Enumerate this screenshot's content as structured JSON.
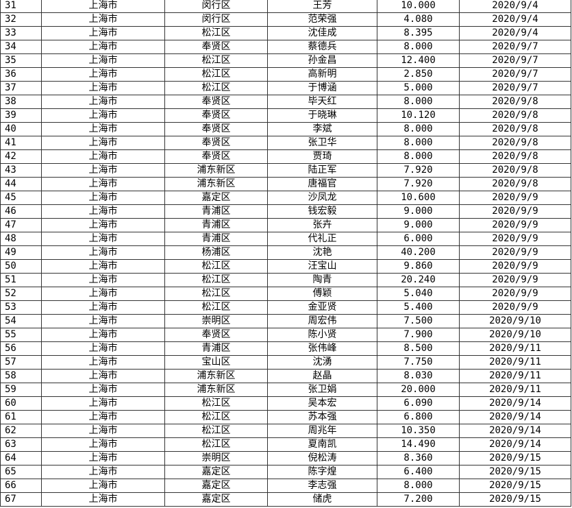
{
  "table": {
    "rows": [
      [
        "31",
        "上海市",
        "闵行区",
        "王芳",
        "10.000",
        "2020/9/4"
      ],
      [
        "32",
        "上海市",
        "闵行区",
        "范荣强",
        "4.080",
        "2020/9/4"
      ],
      [
        "33",
        "上海市",
        "松江区",
        "沈佳成",
        "8.395",
        "2020/9/4"
      ],
      [
        "34",
        "上海市",
        "奉贤区",
        "蔡德兵",
        "8.000",
        "2020/9/7"
      ],
      [
        "35",
        "上海市",
        "松江区",
        "孙金昌",
        "12.400",
        "2020/9/7"
      ],
      [
        "36",
        "上海市",
        "松江区",
        "高新明",
        "2.850",
        "2020/9/7"
      ],
      [
        "37",
        "上海市",
        "松江区",
        "于博涵",
        "5.000",
        "2020/9/7"
      ],
      [
        "38",
        "上海市",
        "奉贤区",
        "毕天红",
        "8.000",
        "2020/9/8"
      ],
      [
        "39",
        "上海市",
        "奉贤区",
        "于晓琳",
        "10.120",
        "2020/9/8"
      ],
      [
        "40",
        "上海市",
        "奉贤区",
        "李斌",
        "8.000",
        "2020/9/8"
      ],
      [
        "41",
        "上海市",
        "奉贤区",
        "张卫华",
        "8.000",
        "2020/9/8"
      ],
      [
        "42",
        "上海市",
        "奉贤区",
        "贾琦",
        "8.000",
        "2020/9/8"
      ],
      [
        "43",
        "上海市",
        "浦东新区",
        "陆正军",
        "7.920",
        "2020/9/8"
      ],
      [
        "44",
        "上海市",
        "浦东新区",
        "唐福官",
        "7.920",
        "2020/9/8"
      ],
      [
        "45",
        "上海市",
        "嘉定区",
        "沙凤龙",
        "10.600",
        "2020/9/9"
      ],
      [
        "46",
        "上海市",
        "青浦区",
        "钱宏毅",
        "9.000",
        "2020/9/9"
      ],
      [
        "47",
        "上海市",
        "青浦区",
        "张卉",
        "9.000",
        "2020/9/9"
      ],
      [
        "48",
        "上海市",
        "青浦区",
        "代礼正",
        "6.000",
        "2020/9/9"
      ],
      [
        "49",
        "上海市",
        "杨浦区",
        "沈艳",
        "40.200",
        "2020/9/9"
      ],
      [
        "50",
        "上海市",
        "松江区",
        "汪宝山",
        "9.860",
        "2020/9/9"
      ],
      [
        "51",
        "上海市",
        "松江区",
        "陶青",
        "20.240",
        "2020/9/9"
      ],
      [
        "52",
        "上海市",
        "松江区",
        "傅颖",
        "5.040",
        "2020/9/9"
      ],
      [
        "53",
        "上海市",
        "松江区",
        "金亚贤",
        "5.400",
        "2020/9/9"
      ],
      [
        "54",
        "上海市",
        "崇明区",
        "周宏伟",
        "7.500",
        "2020/9/10"
      ],
      [
        "55",
        "上海市",
        "奉贤区",
        "陈小贤",
        "7.900",
        "2020/9/10"
      ],
      [
        "56",
        "上海市",
        "青浦区",
        "张伟峰",
        "8.500",
        "2020/9/11"
      ],
      [
        "57",
        "上海市",
        "宝山区",
        "沈湧",
        "7.750",
        "2020/9/11"
      ],
      [
        "58",
        "上海市",
        "浦东新区",
        "赵晶",
        "8.030",
        "2020/9/11"
      ],
      [
        "59",
        "上海市",
        "浦东新区",
        "张卫娟",
        "20.000",
        "2020/9/11"
      ],
      [
        "60",
        "上海市",
        "松江区",
        "吴本宏",
        "6.090",
        "2020/9/14"
      ],
      [
        "61",
        "上海市",
        "松江区",
        "苏本强",
        "6.800",
        "2020/9/14"
      ],
      [
        "62",
        "上海市",
        "松江区",
        "周兆年",
        "10.350",
        "2020/9/14"
      ],
      [
        "63",
        "上海市",
        "松江区",
        "夏南凯",
        "14.490",
        "2020/9/14"
      ],
      [
        "64",
        "上海市",
        "崇明区",
        "倪松涛",
        "8.360",
        "2020/9/15"
      ],
      [
        "65",
        "上海市",
        "嘉定区",
        "陈字煌",
        "6.400",
        "2020/9/15"
      ],
      [
        "66",
        "上海市",
        "嘉定区",
        "李志强",
        "8.000",
        "2020/9/15"
      ],
      [
        "67",
        "上海市",
        "嘉定区",
        "储虎",
        "7.200",
        "2020/9/15"
      ]
    ]
  }
}
